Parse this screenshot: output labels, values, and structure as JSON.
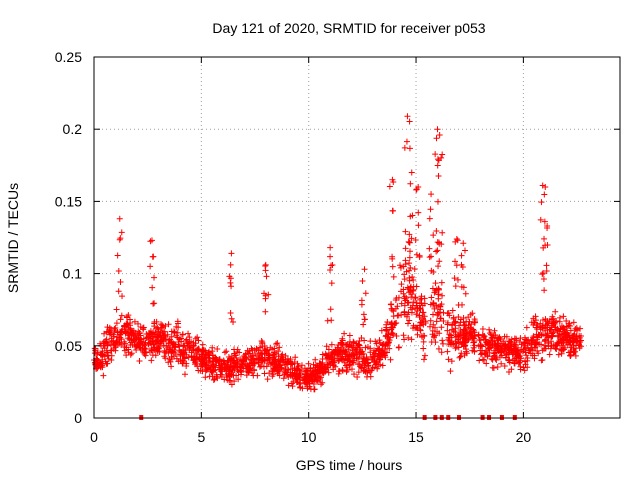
{
  "chart_data": {
    "type": "scatter",
    "title": "Day 121 of 2020, SRMTID for receiver p053",
    "xlabel": "GPS time / hours",
    "ylabel": "SRMTID / TECUs",
    "xlim": [
      0,
      24.5
    ],
    "ylim": [
      0,
      0.25
    ],
    "xticks": [
      0,
      5,
      10,
      15,
      20
    ],
    "xtick_labels": [
      "0",
      "5",
      "10",
      "15",
      "20"
    ],
    "yticks": [
      0,
      0.05,
      0.1,
      0.15,
      0.2,
      0.25
    ],
    "ytick_labels": [
      "0",
      "0.05",
      "0.1",
      "0.15",
      "0.2",
      "0.25"
    ],
    "grid": true,
    "marker": "+",
    "color": "#ff0000",
    "baseline_markers_x": [
      2.2,
      15.4,
      15.9,
      16.2,
      16.5,
      17.0,
      18.1,
      18.4,
      19.0,
      19.6
    ],
    "envelope": {
      "x": [
        0,
        0.5,
        1.0,
        1.5,
        2.0,
        2.5,
        3.0,
        3.5,
        4.0,
        4.5,
        5.0,
        5.5,
        6.0,
        6.5,
        7.0,
        7.5,
        8.0,
        8.5,
        9.0,
        9.5,
        10.0,
        10.5,
        11.0,
        11.5,
        12.0,
        12.5,
        13.0,
        13.5,
        14.0,
        14.5,
        15.0,
        15.5,
        16.0,
        16.5,
        17.0,
        17.5,
        18.0,
        18.5,
        19.0,
        19.5,
        20.0,
        20.5,
        21.0,
        21.5,
        22.0,
        22.5
      ],
      "center": [
        0.04,
        0.045,
        0.055,
        0.06,
        0.055,
        0.05,
        0.055,
        0.05,
        0.05,
        0.045,
        0.042,
        0.038,
        0.035,
        0.035,
        0.038,
        0.04,
        0.042,
        0.04,
        0.035,
        0.03,
        0.028,
        0.032,
        0.04,
        0.045,
        0.045,
        0.042,
        0.04,
        0.05,
        0.07,
        0.085,
        0.075,
        0.06,
        0.08,
        0.06,
        0.055,
        0.06,
        0.05,
        0.05,
        0.048,
        0.045,
        0.045,
        0.055,
        0.06,
        0.058,
        0.055,
        0.052
      ],
      "spread": [
        0.015,
        0.018,
        0.022,
        0.02,
        0.02,
        0.018,
        0.02,
        0.018,
        0.02,
        0.018,
        0.016,
        0.015,
        0.014,
        0.014,
        0.015,
        0.016,
        0.016,
        0.016,
        0.015,
        0.014,
        0.013,
        0.014,
        0.016,
        0.018,
        0.018,
        0.017,
        0.016,
        0.02,
        0.03,
        0.04,
        0.035,
        0.03,
        0.045,
        0.03,
        0.02,
        0.02,
        0.018,
        0.018,
        0.017,
        0.016,
        0.018,
        0.022,
        0.022,
        0.02,
        0.018,
        0.016
      ]
    },
    "peaks": [
      {
        "x": 1.2,
        "y": 0.138
      },
      {
        "x": 2.7,
        "y": 0.123
      },
      {
        "x": 6.4,
        "y": 0.114
      },
      {
        "x": 8.0,
        "y": 0.106
      },
      {
        "x": 11.0,
        "y": 0.118
      },
      {
        "x": 12.6,
        "y": 0.103
      },
      {
        "x": 13.9,
        "y": 0.165
      },
      {
        "x": 14.6,
        "y": 0.209
      },
      {
        "x": 14.8,
        "y": 0.17
      },
      {
        "x": 15.1,
        "y": 0.16
      },
      {
        "x": 15.7,
        "y": 0.155
      },
      {
        "x": 16.0,
        "y": 0.2
      },
      {
        "x": 16.1,
        "y": 0.196
      },
      {
        "x": 16.9,
        "y": 0.124
      },
      {
        "x": 17.2,
        "y": 0.121
      },
      {
        "x": 20.9,
        "y": 0.161
      },
      {
        "x": 21.0,
        "y": 0.136
      }
    ]
  }
}
